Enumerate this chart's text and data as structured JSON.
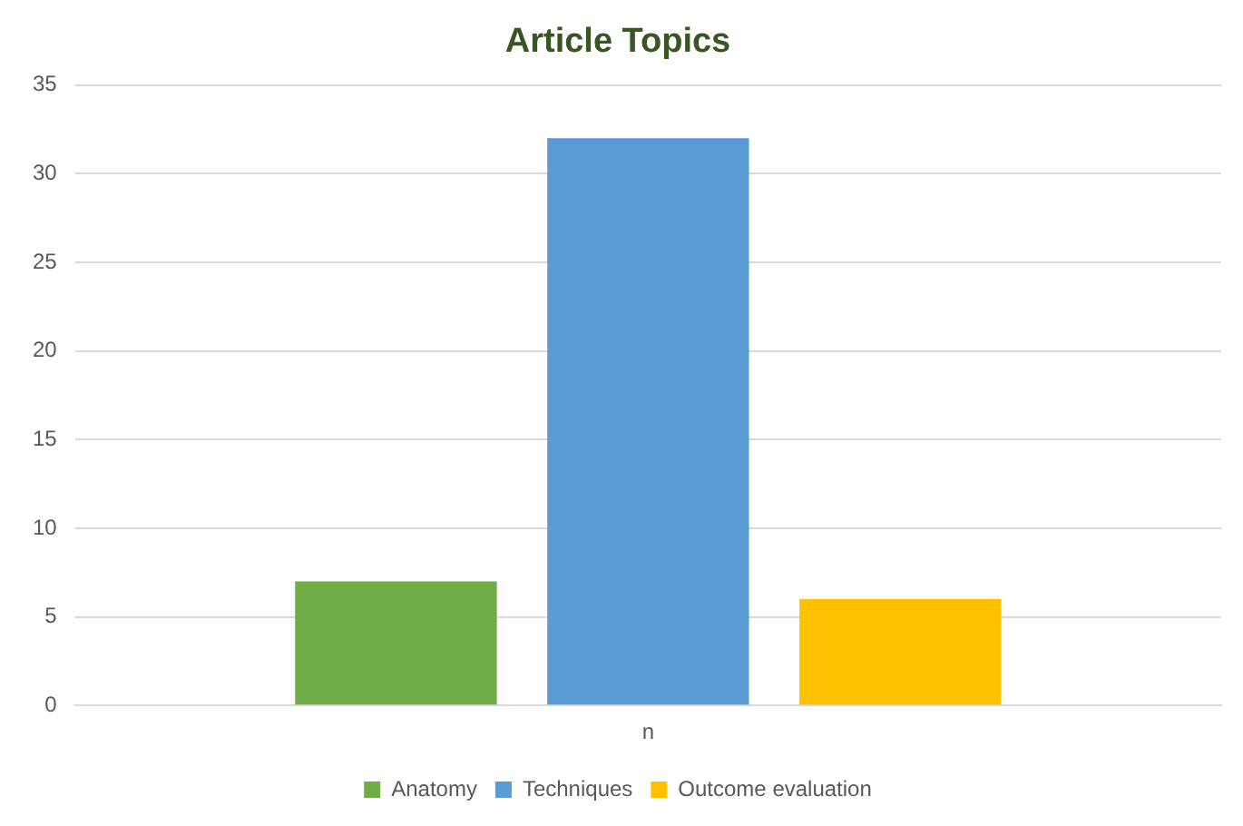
{
  "chart_data": {
    "type": "bar",
    "title": "Article Topics",
    "categories": [
      "n"
    ],
    "series": [
      {
        "name": "Anatomy",
        "color": "#70ad47",
        "values": [
          7
        ]
      },
      {
        "name": "Techniques",
        "color": "#5b9bd5",
        "values": [
          32
        ]
      },
      {
        "name": "Outcome evaluation",
        "color": "#ffc000",
        "values": [
          6
        ]
      }
    ],
    "ylim": [
      0,
      35
    ],
    "yticks": [
      0,
      5,
      10,
      15,
      20,
      25,
      30,
      35
    ],
    "grid": "y",
    "legend": "bottom"
  }
}
